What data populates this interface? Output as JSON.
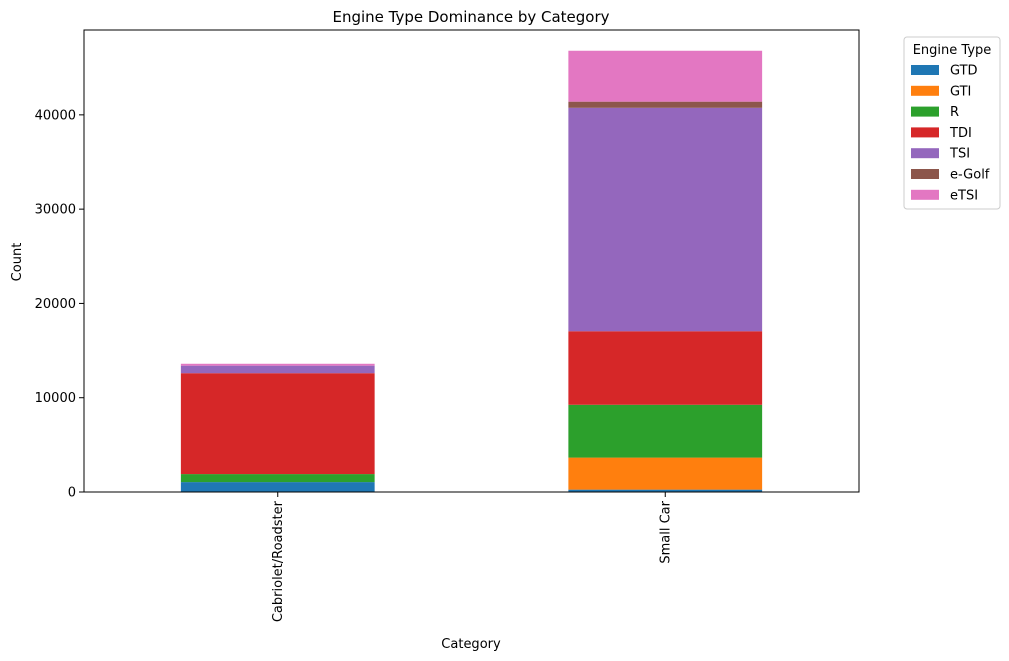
{
  "chart_data": {
    "type": "bar",
    "stacked": true,
    "title": "Engine Type Dominance by Category",
    "xlabel": "Category",
    "ylabel": "Count",
    "ylim": [
      0,
      49000
    ],
    "yticks": [
      0,
      10000,
      20000,
      30000,
      40000
    ],
    "grid": false,
    "legend_title": "Engine Type",
    "legend_position": "outside-top-right",
    "categories": [
      "Cabriolet/Roadster",
      "Small Car"
    ],
    "series": [
      {
        "name": "GTD",
        "color": "#1f77b4",
        "values": [
          1050,
          250
        ]
      },
      {
        "name": "GTI",
        "color": "#ff7f0e",
        "values": [
          0,
          3400
        ]
      },
      {
        "name": "R",
        "color": "#2ca02c",
        "values": [
          850,
          5600
        ]
      },
      {
        "name": "TDI",
        "color": "#d62728",
        "values": [
          10700,
          7800
        ]
      },
      {
        "name": "TSI",
        "color": "#9467bd",
        "values": [
          800,
          23700
        ]
      },
      {
        "name": "e-Golf",
        "color": "#8c564b",
        "values": [
          0,
          650
        ]
      },
      {
        "name": "eTSI",
        "color": "#e377c2",
        "values": [
          200,
          5400
        ]
      }
    ]
  }
}
